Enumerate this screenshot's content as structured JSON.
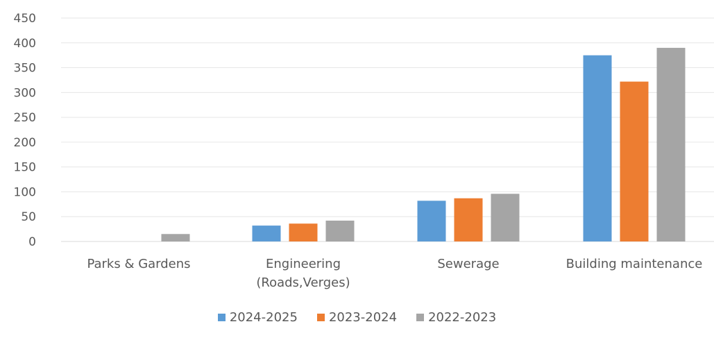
{
  "chart_data": {
    "type": "bar",
    "title": "",
    "xlabel": "",
    "ylabel": "",
    "ylim": [
      0,
      450
    ],
    "yticks": [
      0,
      50,
      100,
      150,
      200,
      250,
      300,
      350,
      400,
      450
    ],
    "grid": true,
    "legend_position": "bottom",
    "categories": [
      [
        "Parks & Gardens"
      ],
      [
        "Engineering",
        "(Roads,Verges)"
      ],
      [
        "Sewerage"
      ],
      [
        "Building maintenance"
      ]
    ],
    "series": [
      {
        "name": "2024-2025",
        "color": "#5B9BD5",
        "values": [
          0,
          32,
          82,
          375
        ]
      },
      {
        "name": "2023-2024",
        "color": "#ED7D31",
        "values": [
          0,
          36,
          87,
          322
        ]
      },
      {
        "name": "2022-2023",
        "color": "#A5A5A5",
        "values": [
          15,
          42,
          96,
          390
        ]
      }
    ]
  }
}
